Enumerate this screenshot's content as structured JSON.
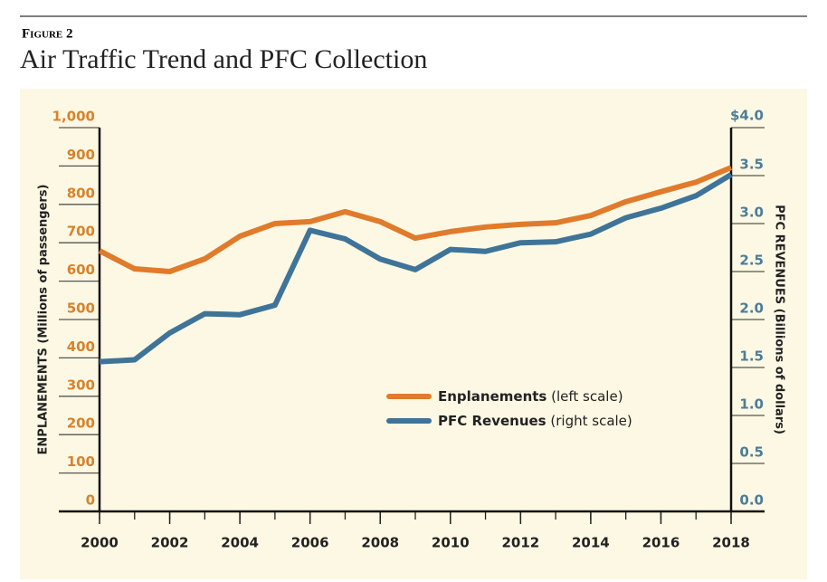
{
  "figure_label": "Figure 2",
  "chart_data": {
    "type": "line",
    "title": "Air Traffic Trend and PFC Collection",
    "x": [
      2000,
      2001,
      2002,
      2003,
      2004,
      2005,
      2006,
      2007,
      2008,
      2009,
      2010,
      2011,
      2012,
      2013,
      2014,
      2015,
      2016,
      2017,
      2018
    ],
    "xlim": [
      2000,
      2018
    ],
    "xticks": [
      2000,
      2002,
      2004,
      2006,
      2008,
      2010,
      2012,
      2014,
      2016,
      2018
    ],
    "ylabel": "ENPLANEMENTS (Millions of passengers)",
    "y2label": "PFC REVENUES (Billions of dollars)",
    "ylim": [
      0,
      1000
    ],
    "yticks": [
      0,
      100,
      200,
      300,
      400,
      500,
      600,
      700,
      800,
      900,
      {
        "value": 1000,
        "label": "1,000"
      }
    ],
    "y2lim": [
      0,
      4
    ],
    "y2ticks": [
      {
        "value": 0,
        "label": "0.0"
      },
      0.5,
      {
        "value": 1,
        "label": "1.0"
      },
      1.5,
      {
        "value": 2,
        "label": "2.0"
      },
      2.5,
      {
        "value": 3,
        "label": "3.0"
      },
      3.5,
      {
        "value": 4,
        "label": "$4.0"
      }
    ],
    "y_color": "#d9822b",
    "y2_color": "#4a7d9c",
    "series": [
      {
        "name": "Enplanements",
        "scale_label": "(left scale)",
        "color": "#e07b2c",
        "values": [
          679,
          632,
          625,
          658,
          717,
          750,
          755,
          781,
          755,
          712,
          729,
          741,
          748,
          752,
          771,
          807,
          833,
          858,
          896
        ]
      },
      {
        "name": "PFC Revenues",
        "scale_label": "(right scale)",
        "color": "#3f7498",
        "axis": "y2",
        "values": [
          1.56,
          1.58,
          1.86,
          2.06,
          2.05,
          2.15,
          2.93,
          2.84,
          2.63,
          2.52,
          2.73,
          2.71,
          2.8,
          2.81,
          2.89,
          3.06,
          3.16,
          3.29,
          3.51
        ]
      }
    ]
  }
}
